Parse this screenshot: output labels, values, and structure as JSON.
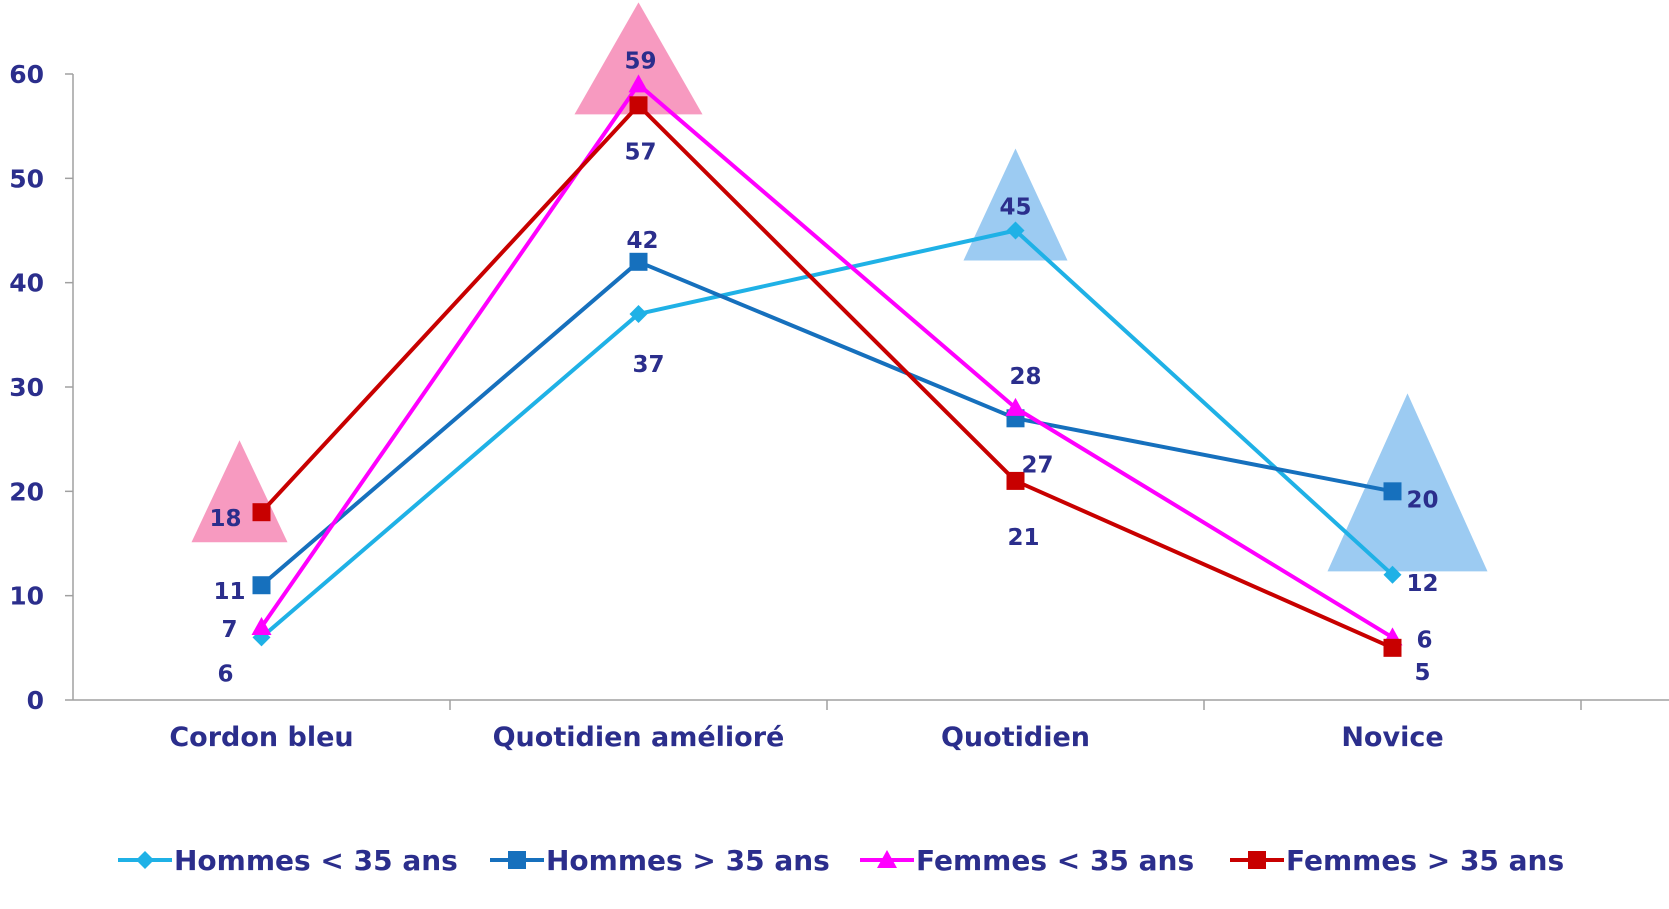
{
  "chart_data": {
    "type": "line",
    "categories": [
      "Cordon bleu",
      "Quotidien amélioré",
      "Quotidien",
      "Novice"
    ],
    "ylim": [
      0,
      60
    ],
    "yticks": [
      0,
      10,
      20,
      30,
      40,
      50,
      60
    ],
    "grid": false,
    "legend_position": "bottom",
    "series": [
      {
        "name": "Hommes < 35 ans",
        "values": [
          6,
          37,
          45,
          12
        ],
        "color": "#1fb1e6",
        "marker": "diamond"
      },
      {
        "name": "Hommes > 35 ans",
        "values": [
          11,
          42,
          27,
          20
        ],
        "color": "#1670bd",
        "marker": "square"
      },
      {
        "name": "Femmes < 35 ans",
        "values": [
          7,
          59,
          28,
          6
        ],
        "color": "#ff00ff",
        "marker": "triangle"
      },
      {
        "name": "Femmes > 35 ans",
        "values": [
          18,
          57,
          21,
          5
        ],
        "color": "#c80000",
        "marker": "square"
      }
    ],
    "highlights": [
      {
        "category": "Cordon bleu",
        "series": "Femmes > 35 ans",
        "color": "#f79ac0"
      },
      {
        "category": "Quotidien amélioré",
        "series": "Femmes < 35 ans",
        "color": "#f79ac0"
      },
      {
        "category": "Quotidien",
        "series": "Hommes < 35 ans",
        "color": "#9ccbf2"
      },
      {
        "category": "Novice",
        "series": "Hommes > 35 ans",
        "color": "#9ccbf2"
      }
    ],
    "axis_color": "#a0a0a0",
    "text_color": "#2b2e8c"
  }
}
